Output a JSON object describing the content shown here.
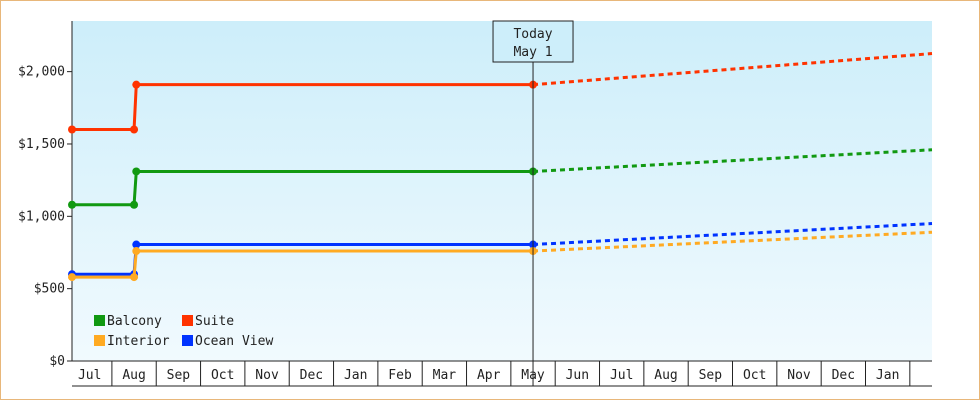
{
  "chart_data": {
    "type": "line",
    "y_ticks": [
      {
        "value": 0,
        "label": "$0"
      },
      {
        "value": 500,
        "label": "$500"
      },
      {
        "value": 1000,
        "label": "$1,000"
      },
      {
        "value": 1500,
        "label": "$1,500"
      },
      {
        "value": 2000,
        "label": "$2,000"
      }
    ],
    "ylim": [
      0,
      2350
    ],
    "x_months": [
      "Jul",
      "Aug",
      "Sep",
      "Oct",
      "Nov",
      "Dec",
      "Jan",
      "Feb",
      "Mar",
      "Apr",
      "May",
      "Jun",
      "Jul",
      "Aug",
      "Sep",
      "Oct",
      "Nov",
      "Dec",
      "Jan"
    ],
    "xlim": [
      -0.4,
      19.0
    ],
    "today_marker": {
      "line1": "Today",
      "line2": "May 1",
      "x": 10.0
    },
    "series": [
      {
        "name": "Suite",
        "color": "#ff3300",
        "history": [
          [
            -0.4,
            1600
          ],
          [
            1.0,
            1600
          ],
          [
            1.05,
            1910
          ],
          [
            10.0,
            1910
          ]
        ],
        "forecast": [
          [
            10.0,
            1910
          ],
          [
            19.0,
            2125
          ]
        ]
      },
      {
        "name": "Balcony",
        "color": "#119911",
        "history": [
          [
            -0.4,
            1080
          ],
          [
            1.0,
            1080
          ],
          [
            1.05,
            1310
          ],
          [
            10.0,
            1310
          ]
        ],
        "forecast": [
          [
            10.0,
            1310
          ],
          [
            19.0,
            1460
          ]
        ]
      },
      {
        "name": "Ocean View",
        "color": "#0033ff",
        "history": [
          [
            -0.4,
            600
          ],
          [
            1.0,
            600
          ],
          [
            1.05,
            805
          ],
          [
            10.0,
            805
          ]
        ],
        "forecast": [
          [
            10.0,
            805
          ],
          [
            19.0,
            950
          ]
        ]
      },
      {
        "name": "Interior",
        "color": "#ffaa22",
        "history": [
          [
            -0.4,
            580
          ],
          [
            1.0,
            580
          ],
          [
            1.05,
            760
          ],
          [
            10.0,
            760
          ]
        ],
        "forecast": [
          [
            10.0,
            760
          ],
          [
            19.0,
            890
          ]
        ]
      }
    ],
    "legend": [
      {
        "label": "Balcony",
        "color": "#119911"
      },
      {
        "label": "Suite",
        "color": "#ff3300"
      },
      {
        "label": "Interior",
        "color": "#ffaa22"
      },
      {
        "label": "Ocean View",
        "color": "#0033ff"
      }
    ]
  }
}
